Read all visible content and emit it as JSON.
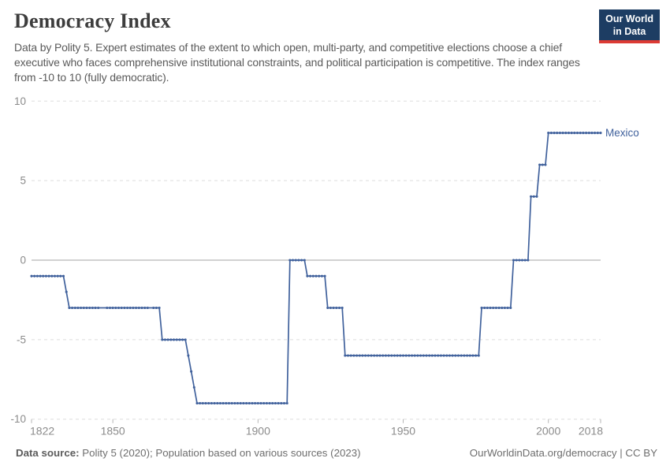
{
  "header": {
    "title": "Democracy Index",
    "subtitle": "Data by Polity 5. Expert estimates of the extent to which open, multi-party, and competitive elections choose a chief executive who faces comprehensive institutional constraints, and political participation is competitive. The index ranges from -10 to 10 (fully democratic)."
  },
  "logo": {
    "line1": "Our World",
    "line2": "in Data",
    "bg_color": "#1d3d63",
    "accent_color": "#dc3a34"
  },
  "footer": {
    "source_label": "Data source:",
    "source_text": " Polity 5 (2020); Population based on various sources (2023)",
    "link_text": "OurWorldinData.org/democracy | CC BY"
  },
  "chart_data": {
    "type": "line",
    "title": "Democracy Index",
    "entity": "Mexico",
    "xlabel": "",
    "ylabel": "",
    "xlim": [
      1822,
      2018
    ],
    "ylim": [
      -10,
      10
    ],
    "x_ticks": [
      1822,
      1850,
      1900,
      1950,
      2000,
      2018
    ],
    "y_ticks": [
      10,
      5,
      0,
      -5,
      -10
    ],
    "grid": "horizontal dashed gridlines, solid zero line",
    "legend_position": "label at end of line",
    "line_color": "#40619c",
    "marker": "dot every year",
    "missing_years": [
      1846,
      1847,
      1863
    ],
    "segments": [
      {
        "start": 1822,
        "end": 1833,
        "value": -1
      },
      {
        "start": 1834,
        "end": 1834,
        "value": -2
      },
      {
        "start": 1835,
        "end": 1866,
        "value": -3
      },
      {
        "start": 1867,
        "end": 1875,
        "value": -5
      },
      {
        "start": 1876,
        "end": 1876,
        "value": -6
      },
      {
        "start": 1877,
        "end": 1877,
        "value": -7
      },
      {
        "start": 1878,
        "end": 1878,
        "value": -8
      },
      {
        "start": 1879,
        "end": 1910,
        "value": -9
      },
      {
        "start": 1911,
        "end": 1916,
        "value": 0
      },
      {
        "start": 1917,
        "end": 1923,
        "value": -1
      },
      {
        "start": 1924,
        "end": 1929,
        "value": -3
      },
      {
        "start": 1930,
        "end": 1976,
        "value": -6
      },
      {
        "start": 1977,
        "end": 1987,
        "value": -3
      },
      {
        "start": 1988,
        "end": 1993,
        "value": 0
      },
      {
        "start": 1994,
        "end": 1996,
        "value": 4
      },
      {
        "start": 1997,
        "end": 1999,
        "value": 6
      },
      {
        "start": 2000,
        "end": 2018,
        "value": 8
      }
    ]
  }
}
